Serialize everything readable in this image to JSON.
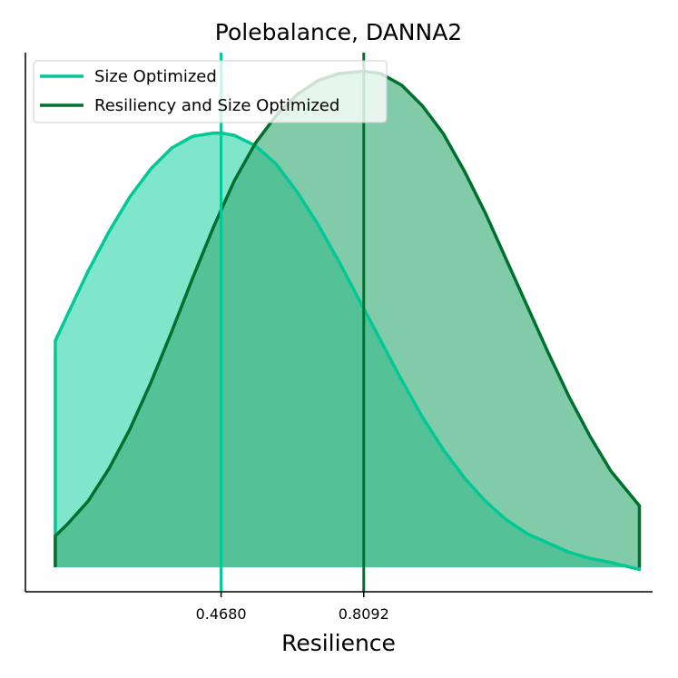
{
  "chart_data": {
    "type": "area",
    "title": "Polebalance, DANNA2",
    "xlabel": "Resilience",
    "ylabel": "",
    "xlim": [
      0.0,
      1.5
    ],
    "ylim": [
      -0.06,
      1.1
    ],
    "grid": false,
    "legend_position": "top-left",
    "x_ticks": [
      {
        "value": 0.468,
        "label": "0.4680"
      },
      {
        "value": 0.8092,
        "label": "0.8092"
      }
    ],
    "series": [
      {
        "name": "Size Optimized",
        "color": "#00c896",
        "fill_color": "#7fe5cb",
        "mean": 0.468,
        "x": [
          0.0715,
          0.1,
          0.15,
          0.2,
          0.25,
          0.3,
          0.35,
          0.4,
          0.45,
          0.468,
          0.5,
          0.55,
          0.6,
          0.65,
          0.7,
          0.75,
          0.8,
          0.85,
          0.9,
          0.95,
          1.0,
          1.05,
          1.1,
          1.15,
          1.2,
          1.25,
          1.3,
          1.35,
          1.4,
          1.4685
        ],
        "values": [
          0.48,
          0.535,
          0.63,
          0.715,
          0.79,
          0.85,
          0.895,
          0.92,
          0.927,
          0.927,
          0.922,
          0.9,
          0.86,
          0.8,
          0.73,
          0.65,
          0.565,
          0.48,
          0.395,
          0.315,
          0.245,
          0.185,
          0.135,
          0.095,
          0.065,
          0.045,
          0.025,
          0.012,
          0.003,
          -0.012
        ]
      },
      {
        "name": "Resiliency and Size Optimized",
        "color": "#00702f",
        "fill_color": "#3daf7a",
        "mean": 0.8092,
        "x": [
          0.0715,
          0.1,
          0.15,
          0.2,
          0.25,
          0.3,
          0.35,
          0.4,
          0.45,
          0.5,
          0.55,
          0.6,
          0.65,
          0.7,
          0.75,
          0.8092,
          0.85,
          0.9,
          0.95,
          1.0,
          1.05,
          1.1,
          1.15,
          1.2,
          1.25,
          1.3,
          1.35,
          1.4,
          1.4685
        ],
        "values": [
          0.06,
          0.085,
          0.135,
          0.205,
          0.29,
          0.39,
          0.5,
          0.615,
          0.725,
          0.825,
          0.905,
          0.965,
          1.01,
          1.04,
          1.055,
          1.06,
          1.055,
          1.03,
          0.985,
          0.925,
          0.845,
          0.755,
          0.655,
          0.555,
          0.455,
          0.36,
          0.275,
          0.2,
          0.125
        ]
      }
    ]
  }
}
